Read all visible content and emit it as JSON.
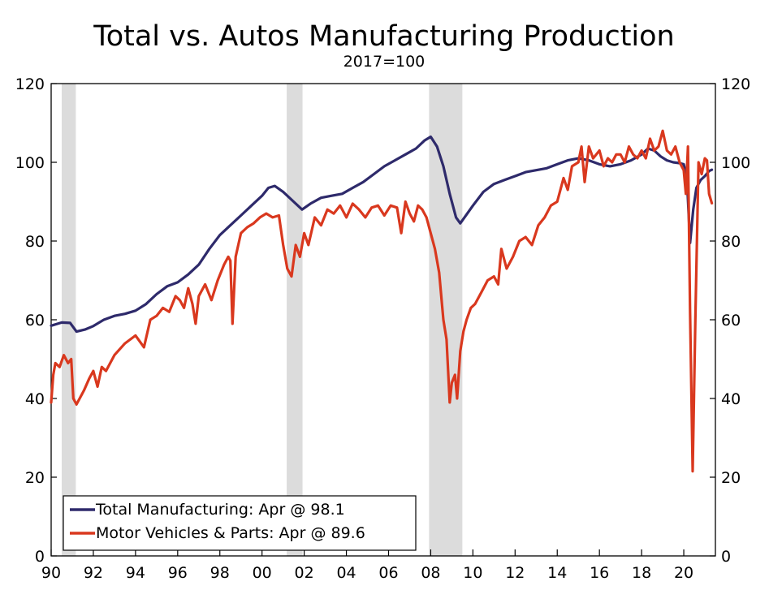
{
  "chart_data": {
    "type": "line",
    "title": "Total vs. Autos Manufacturing Production",
    "subtitle": "2017=100",
    "xlabel": "",
    "ylabel": "",
    "xlim": [
      1990.0,
      2021.5
    ],
    "ylim": [
      0,
      120
    ],
    "y_ticks": [
      0,
      20,
      40,
      60,
      80,
      100,
      120
    ],
    "y_tick_labels": [
      "0",
      "20",
      "40",
      "60",
      "80",
      "100",
      "120"
    ],
    "x_ticks": [
      1990,
      1992,
      1994,
      1996,
      1998,
      2000,
      2002,
      2004,
      2006,
      2008,
      2010,
      2012,
      2014,
      2016,
      2018,
      2020
    ],
    "x_tick_labels": [
      "90",
      "92",
      "94",
      "96",
      "98",
      "00",
      "02",
      "04",
      "06",
      "08",
      "10",
      "12",
      "14",
      "16",
      "18",
      "20"
    ],
    "right_axis_mirrors_left": true,
    "grid": false,
    "legend_position": "bottom-left",
    "recessions": [
      {
        "start": 1990.5,
        "end": 1991.17
      },
      {
        "start": 2001.17,
        "end": 2001.92
      },
      {
        "start": 2007.92,
        "end": 2009.5
      }
    ],
    "series": [
      {
        "name": "Total Manufacturing: Apr @ 98.1",
        "color": "#2e2a6b",
        "x": [
          1990.0,
          1990.5,
          1990.9,
          1991.2,
          1991.6,
          1992.0,
          1992.5,
          1993.0,
          1993.5,
          1994.0,
          1994.5,
          1995.0,
          1995.5,
          1996.0,
          1996.5,
          1997.0,
          1997.5,
          1998.0,
          1998.5,
          1999.0,
          1999.5,
          2000.0,
          2000.3,
          2000.6,
          2001.0,
          2001.5,
          2001.9,
          2002.3,
          2002.8,
          2003.3,
          2003.8,
          2004.3,
          2004.8,
          2005.3,
          2005.8,
          2006.3,
          2006.8,
          2007.3,
          2007.7,
          2008.0,
          2008.3,
          2008.6,
          2008.9,
          2009.2,
          2009.4,
          2009.6,
          2010.0,
          2010.5,
          2011.0,
          2011.5,
          2012.0,
          2012.5,
          2013.0,
          2013.5,
          2014.0,
          2014.5,
          2015.0,
          2015.5,
          2016.0,
          2016.5,
          2017.0,
          2017.5,
          2018.0,
          2018.3,
          2018.6,
          2018.9,
          2019.2,
          2019.5,
          2019.8,
          2020.0,
          2020.15,
          2020.3,
          2020.45,
          2020.6,
          2020.8,
          2021.0,
          2021.2,
          2021.33
        ],
        "values": [
          58.5,
          59.3,
          59.2,
          57.0,
          57.5,
          58.4,
          60.0,
          61.0,
          61.5,
          62.3,
          64.0,
          66.5,
          68.5,
          69.5,
          71.5,
          74.0,
          78.0,
          81.5,
          84.0,
          86.5,
          89.0,
          91.5,
          93.5,
          94.0,
          92.5,
          90.0,
          88.0,
          89.5,
          91.0,
          91.5,
          92.0,
          93.5,
          95.0,
          97.0,
          99.0,
          100.5,
          102.0,
          103.5,
          105.5,
          106.5,
          104.0,
          99.0,
          92.0,
          86.0,
          84.5,
          86.0,
          89.0,
          92.5,
          94.5,
          95.5,
          96.5,
          97.5,
          98.0,
          98.5,
          99.5,
          100.5,
          101.0,
          100.5,
          99.5,
          99.0,
          99.5,
          100.5,
          102.0,
          103.5,
          103.0,
          101.5,
          100.5,
          100.0,
          99.8,
          99.5,
          96.0,
          79.5,
          88.0,
          93.5,
          95.5,
          96.5,
          97.8,
          98.1
        ]
      },
      {
        "name": "Motor Vehicles & Parts: Apr @ 89.6",
        "color": "#d9381e",
        "x": [
          1990.0,
          1990.1,
          1990.2,
          1990.4,
          1990.6,
          1990.8,
          1990.95,
          1991.05,
          1991.2,
          1991.35,
          1991.55,
          1991.8,
          1992.0,
          1992.2,
          1992.4,
          1992.6,
          1993.0,
          1993.5,
          1994.0,
          1994.4,
          1994.7,
          1995.0,
          1995.3,
          1995.6,
          1995.9,
          1996.1,
          1996.3,
          1996.5,
          1996.7,
          1996.85,
          1997.0,
          1997.3,
          1997.6,
          1997.9,
          1998.2,
          1998.4,
          1998.5,
          1998.6,
          1998.75,
          1999.0,
          1999.3,
          1999.6,
          1999.9,
          2000.2,
          2000.5,
          2000.8,
          2001.0,
          2001.2,
          2001.4,
          2001.6,
          2001.8,
          2002.0,
          2002.2,
          2002.5,
          2002.8,
          2003.1,
          2003.4,
          2003.7,
          2004.0,
          2004.3,
          2004.6,
          2004.9,
          2005.2,
          2005.5,
          2005.8,
          2006.1,
          2006.4,
          2006.6,
          2006.8,
          2007.0,
          2007.2,
          2007.4,
          2007.6,
          2007.8,
          2008.0,
          2008.2,
          2008.4,
          2008.6,
          2008.75,
          2008.9,
          2009.0,
          2009.15,
          2009.25,
          2009.4,
          2009.55,
          2009.7,
          2009.9,
          2010.1,
          2010.4,
          2010.7,
          2011.0,
          2011.2,
          2011.35,
          2011.6,
          2011.9,
          2012.2,
          2012.5,
          2012.8,
          2013.1,
          2013.4,
          2013.7,
          2014.0,
          2014.3,
          2014.5,
          2014.7,
          2015.0,
          2015.15,
          2015.3,
          2015.5,
          2015.7,
          2016.0,
          2016.2,
          2016.4,
          2016.6,
          2016.8,
          2017.0,
          2017.2,
          2017.4,
          2017.6,
          2017.8,
          2018.0,
          2018.2,
          2018.4,
          2018.6,
          2018.8,
          2019.0,
          2019.2,
          2019.4,
          2019.6,
          2019.8,
          2020.0,
          2020.1,
          2020.2,
          2020.3,
          2020.42,
          2020.55,
          2020.7,
          2020.85,
          2021.0,
          2021.1,
          2021.2,
          2021.33
        ],
        "values": [
          39.0,
          46.0,
          49.0,
          48.0,
          51.0,
          49.0,
          50.0,
          40.0,
          38.5,
          40.0,
          42.0,
          45.0,
          47.0,
          43.0,
          48.0,
          47.0,
          51.0,
          54.0,
          56.0,
          53.0,
          60.0,
          61.0,
          63.0,
          62.0,
          66.0,
          65.0,
          63.0,
          68.0,
          64.0,
          59.0,
          66.0,
          69.0,
          65.0,
          70.0,
          74.0,
          76.0,
          75.0,
          59.0,
          76.0,
          82.0,
          83.5,
          84.5,
          86.0,
          87.0,
          86.0,
          86.5,
          79.0,
          73.0,
          71.0,
          79.0,
          76.0,
          82.0,
          79.0,
          86.0,
          84.0,
          88.0,
          87.0,
          89.0,
          86.0,
          89.5,
          88.0,
          86.0,
          88.5,
          89.0,
          86.5,
          89.0,
          88.5,
          82.0,
          90.0,
          87.0,
          85.0,
          89.0,
          88.0,
          86.0,
          82.0,
          78.0,
          72.0,
          60.0,
          55.0,
          39.0,
          44.0,
          46.0,
          40.0,
          52.0,
          57.0,
          60.0,
          63.0,
          64.0,
          67.0,
          70.0,
          71.0,
          69.0,
          78.0,
          73.0,
          76.0,
          80.0,
          81.0,
          79.0,
          84.0,
          86.0,
          89.0,
          90.0,
          96.0,
          93.0,
          99.0,
          100.0,
          104.0,
          95.0,
          104.0,
          101.0,
          103.0,
          99.0,
          101.0,
          100.0,
          102.0,
          102.0,
          100.0,
          104.0,
          102.0,
          101.0,
          103.0,
          101.0,
          106.0,
          103.0,
          104.0,
          108.0,
          103.0,
          102.0,
          104.0,
          100.0,
          98.0,
          92.0,
          104.0,
          62.0,
          21.5,
          60.0,
          100.0,
          97.0,
          101.0,
          100.5,
          92.0,
          89.6
        ]
      }
    ]
  }
}
